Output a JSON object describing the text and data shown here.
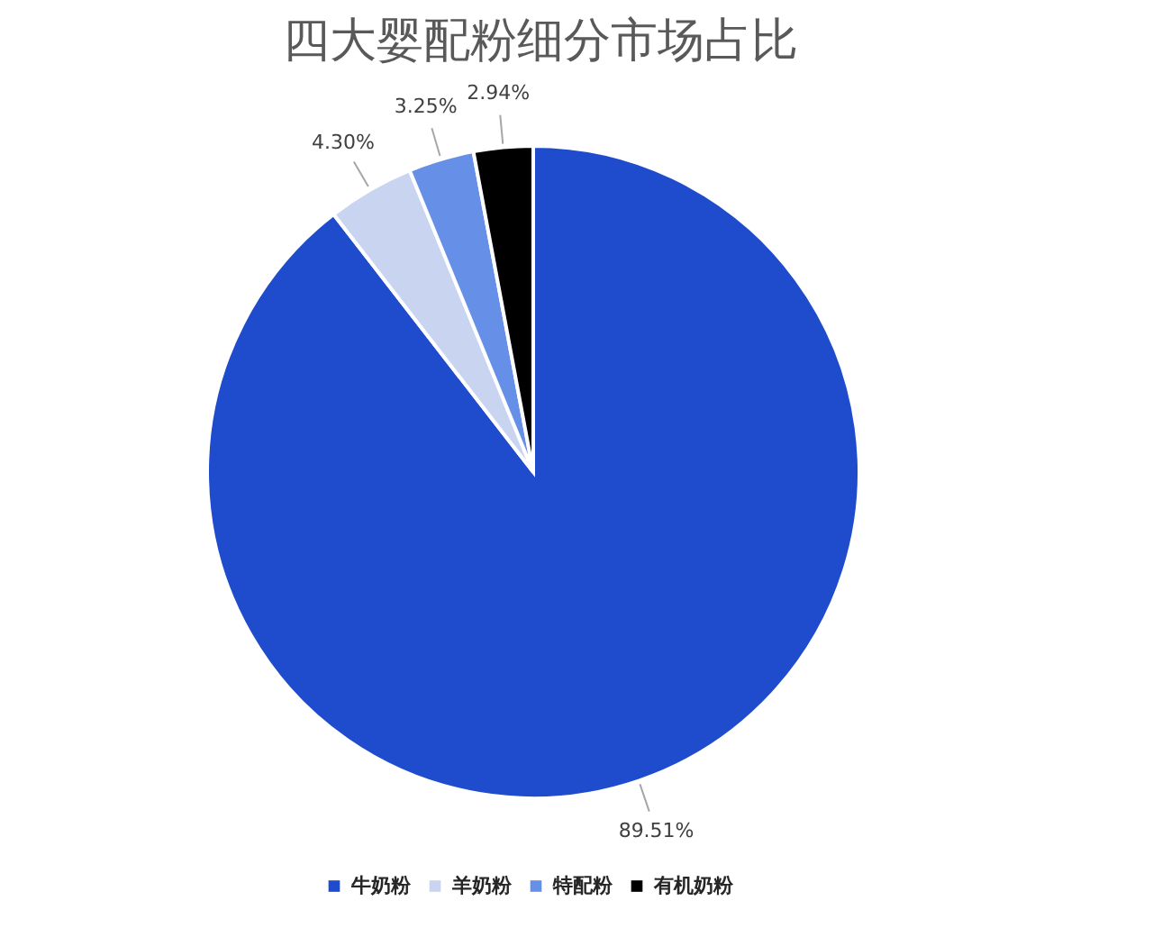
{
  "chart_data": {
    "type": "pie",
    "title": "四大婴配粉细分市场占比",
    "categories": [
      "牛奶粉",
      "羊奶粉",
      "特配粉",
      "有机奶粉"
    ],
    "values": [
      89.51,
      4.3,
      3.25,
      2.94
    ],
    "colors": [
      "#1f4ccc",
      "#c9d5f0",
      "#6690e8",
      "#000000"
    ],
    "value_labels": [
      "89.51%",
      "4.30%",
      "3.25%",
      "2.94%"
    ],
    "legend": "bottom"
  }
}
